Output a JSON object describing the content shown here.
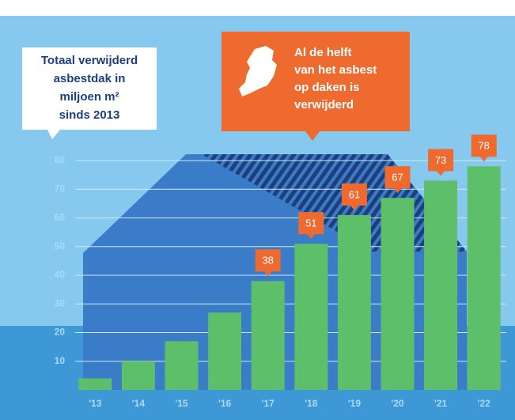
{
  "chart_data": {
    "type": "bar",
    "title": [
      "Totaal verwijderd",
      "asbestdak in",
      "miljoen m²",
      "sinds 2013"
    ],
    "annotation": [
      "Al de helft",
      "van het asbest",
      "op daken is",
      "verwijderd"
    ],
    "categories": [
      "'13",
      "'14",
      "'15",
      "'16",
      "'17",
      "'18",
      "'19",
      "'20",
      "'21",
      "'22"
    ],
    "values": [
      4,
      10,
      17,
      27,
      38,
      51,
      61,
      67,
      73,
      78
    ],
    "value_labels": [
      null,
      null,
      null,
      null,
      "38",
      "51",
      "61",
      "67",
      "73",
      "78"
    ],
    "color": "#5dbf6a",
    "label_color": "#ee6a2f",
    "ylim": [
      0,
      80
    ],
    "yticks": [
      10,
      20,
      30,
      40,
      50,
      60,
      70,
      80
    ],
    "grid": true
  }
}
